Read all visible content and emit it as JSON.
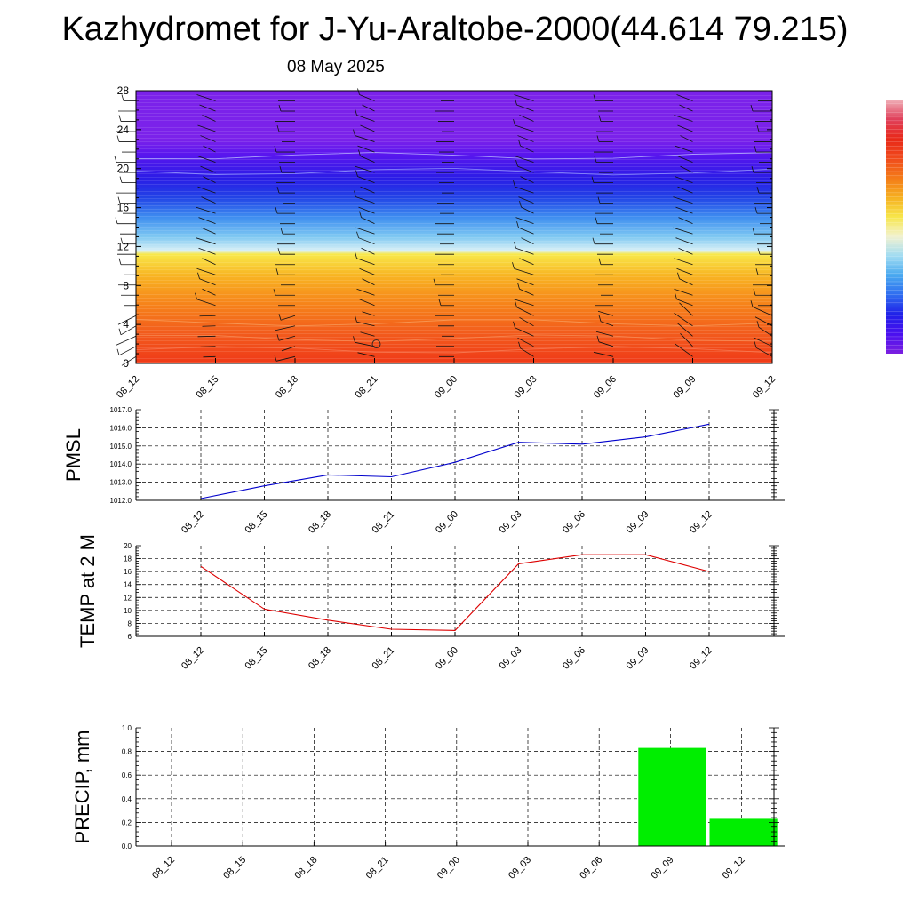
{
  "title": "Kazhydromet for J-Yu-Araltobe-2000(44.614 79.215)",
  "subtitle": "08 May 2025",
  "chart_data": [
    {
      "type": "heatmap",
      "name": "vertical-section",
      "categories": [
        "08_12",
        "08_15",
        "08_18",
        "08_21",
        "09_00",
        "09_03",
        "09_06",
        "09_09",
        "09_12"
      ],
      "y_ticks": [
        "0",
        "4",
        "8",
        "12",
        "16",
        "20",
        "24",
        "28"
      ],
      "ylim": [
        0,
        28
      ],
      "colorbar": {
        "colors": [
          "#7b1fe0",
          "#4a10f0",
          "#2020e8",
          "#2f6cf0",
          "#48a8f0",
          "#a0dcf2",
          "#f2f2d0",
          "#f7e64a",
          "#f6b020",
          "#f47a18",
          "#f04a1c",
          "#e82818",
          "#e0405a",
          "#f0b0b8"
        ]
      },
      "field_levels": [
        {
          "z": 0,
          "color": "#f03a18"
        },
        {
          "z": 3,
          "color": "#f25a1c"
        },
        {
          "z": 6,
          "color": "#f6821a"
        },
        {
          "z": 9,
          "color": "#f8b422"
        },
        {
          "z": 11.2,
          "color": "#f8e84a"
        },
        {
          "z": 11.6,
          "color": "#d8f0f6"
        },
        {
          "z": 13,
          "color": "#7ec8f2"
        },
        {
          "z": 15,
          "color": "#3f8ef0"
        },
        {
          "z": 17,
          "color": "#2244e6"
        },
        {
          "z": 19,
          "color": "#2a1ce6"
        },
        {
          "z": 21.5,
          "color": "#5a16ee"
        },
        {
          "z": 23,
          "color": "#7b22ea"
        },
        {
          "z": 28,
          "color": "#7b22ea"
        }
      ]
    },
    {
      "type": "line",
      "name": "pmsl",
      "ylabel": "PMSL",
      "categories": [
        "08_12",
        "08_15",
        "08_18",
        "08_21",
        "09_00",
        "09_03",
        "09_06",
        "09_09",
        "09_12"
      ],
      "values": [
        1012.1,
        1012.8,
        1013.4,
        1013.3,
        1014.1,
        1015.2,
        1015.1,
        1015.5,
        1016.2
      ],
      "y_ticks": [
        "1012.0",
        "1013.0",
        "1014.0",
        "1015.0",
        "1016.0",
        "1017.0"
      ],
      "ylim": [
        1012,
        1017
      ],
      "color": "#0000cc",
      "grid": true
    },
    {
      "type": "line",
      "name": "temp",
      "ylabel": "TEMP at 2 M",
      "categories": [
        "08_12",
        "08_15",
        "08_18",
        "08_21",
        "09_00",
        "09_03",
        "09_06",
        "09_09",
        "09_12"
      ],
      "values": [
        16.8,
        10.2,
        8.5,
        7.1,
        6.9,
        17.2,
        18.6,
        18.6,
        16.0
      ],
      "y_ticks": [
        "6",
        "8",
        "10",
        "12",
        "14",
        "16",
        "18",
        "20"
      ],
      "ylim": [
        6,
        20
      ],
      "color": "#dd0000",
      "grid": true
    },
    {
      "type": "bar",
      "name": "precip",
      "ylabel": "PRECIP, mm",
      "categories": [
        "08_12",
        "08_15",
        "08_18",
        "08_21",
        "09_00",
        "09_03",
        "09_06",
        "09_09",
        "09_12"
      ],
      "values": [
        0,
        0,
        0,
        0,
        0,
        0,
        0,
        0.83,
        0.23
      ],
      "y_ticks": [
        "0.0",
        "0.2",
        "0.4",
        "0.6",
        "0.8",
        "1.0"
      ],
      "ylim": [
        0,
        1
      ],
      "color": "#00ee00",
      "grid": true
    }
  ]
}
